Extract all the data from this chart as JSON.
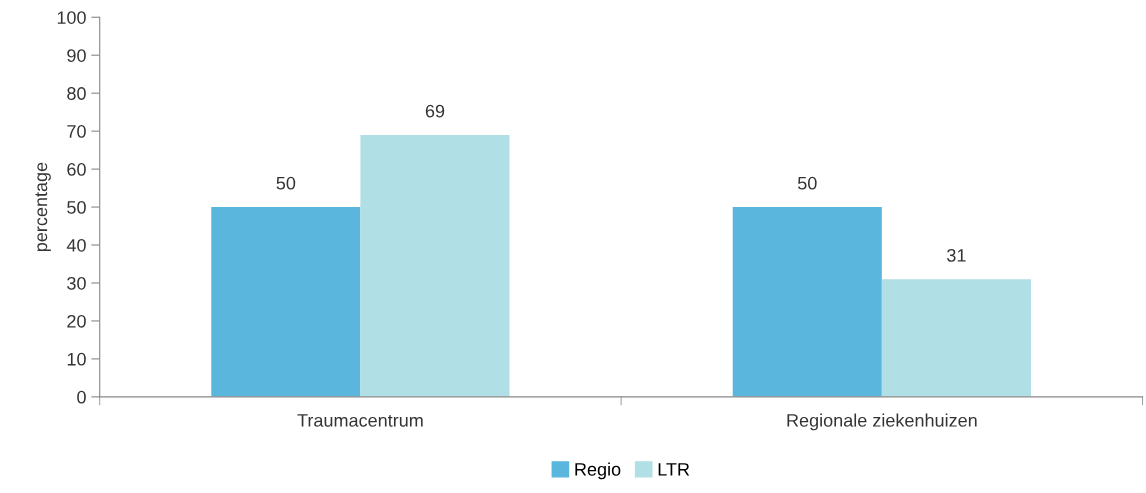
{
  "chart_data": {
    "type": "bar",
    "ylabel": "percentage",
    "categories": [
      "Traumacentrum",
      "Regionale ziekenhuizen"
    ],
    "series": [
      {
        "name": "Regio",
        "color": "#5ab6dc",
        "values": [
          50,
          50
        ]
      },
      {
        "name": "LTR",
        "color": "#b0dfe5",
        "values": [
          69,
          31
        ]
      }
    ],
    "ylim": [
      0,
      100
    ],
    "yticks": [
      0,
      10,
      20,
      30,
      40,
      50,
      60,
      70,
      80,
      90,
      100
    ],
    "data_labels": true,
    "grid": false,
    "legend": "bottom"
  }
}
